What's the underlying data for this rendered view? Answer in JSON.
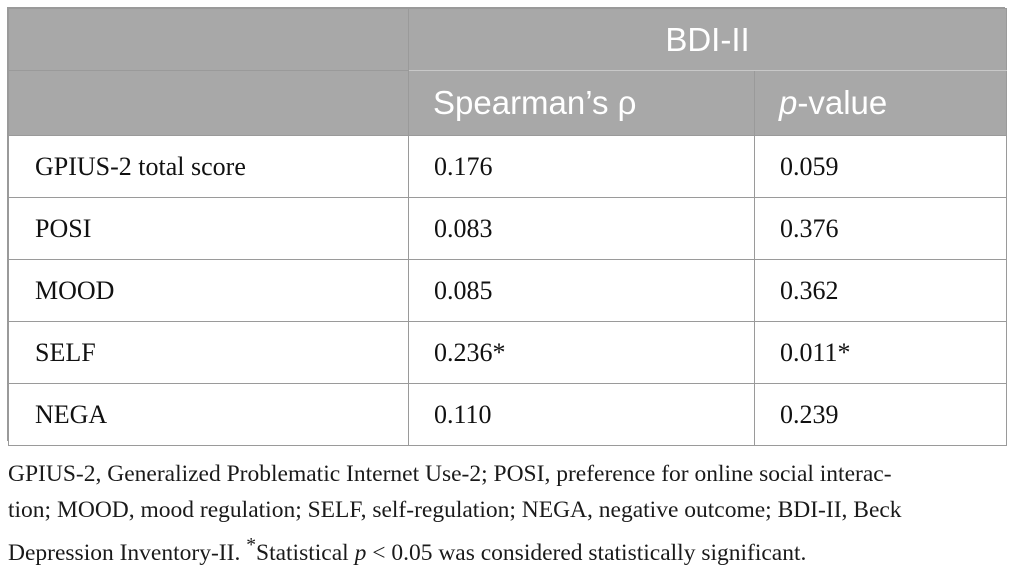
{
  "table": {
    "group_header": "BDI-II",
    "columns": [
      {
        "prefix": "",
        "italic": "",
        "suffix": "Spearman’s ρ"
      },
      {
        "prefix": "",
        "italic": "p",
        "suffix": "-value"
      }
    ],
    "rows": [
      {
        "label": "GPIUS-2 total score",
        "rho": "0.176",
        "p": "0.059"
      },
      {
        "label": "POSI",
        "rho": "0.083",
        "p": "0.376"
      },
      {
        "label": "MOOD",
        "rho": "0.085",
        "p": "0.362"
      },
      {
        "label": "SELF",
        "rho": "0.236*",
        "p": "0.011*"
      },
      {
        "label": "NEGA",
        "rho": "0.110",
        "p": "0.239"
      }
    ]
  },
  "footnote": {
    "lines": [
      "GPIUS-2, Generalized Problematic Internet Use-2; POSI, preference for online social interac-",
      "tion; MOOD, mood regulation; SELF, self-regulation; NEGA, negative outcome; BDI-II, Beck"
    ],
    "last_line_prefix": "Depression Inventory-II. ",
    "asterisk": "*",
    "last_line_mid": "Statistical ",
    "p_symbol": "p",
    "last_line_suffix": " < 0.05 was considered statistically significant."
  }
}
